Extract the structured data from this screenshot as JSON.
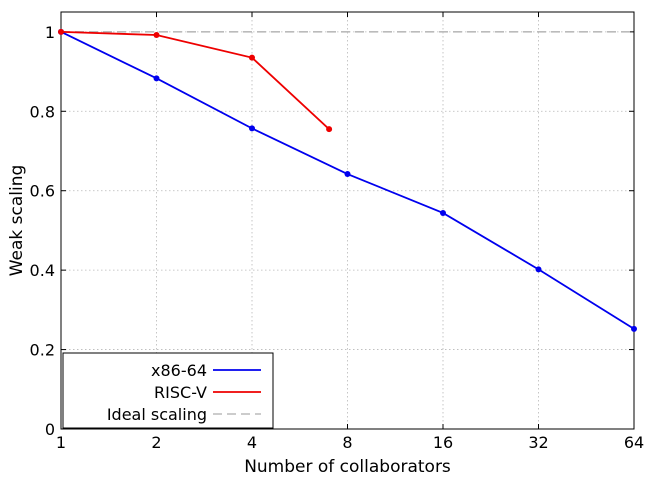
{
  "chart_data": {
    "type": "line",
    "title": "",
    "xlabel": "Number of collaborators",
    "ylabel": "Weak scaling",
    "x_scale": "log2",
    "xlim": [
      1,
      64
    ],
    "ylim": [
      0,
      1.05
    ],
    "xticks": [
      1,
      2,
      4,
      8,
      16,
      32,
      64
    ],
    "xtick_labels": [
      "1",
      "2",
      "4",
      "8",
      "16",
      "32",
      "64"
    ],
    "yticks": [
      0,
      0.2,
      0.4,
      0.6,
      0.8,
      1
    ],
    "ytick_labels": [
      "0",
      "0.2",
      "0.4",
      "0.6",
      "0.8",
      "1"
    ],
    "grid": true,
    "legend_position": "bottom-left",
    "series": [
      {
        "name": "x86-64",
        "color": "#0000ee",
        "style": "solid-markers",
        "x": [
          1,
          2,
          4,
          8,
          16,
          32,
          64
        ],
        "y": [
          1.0,
          0.883,
          0.757,
          0.642,
          0.544,
          0.402,
          0.252
        ]
      },
      {
        "name": "RISC-V",
        "color": "#ee0000",
        "style": "solid-markers",
        "x": [
          1,
          2,
          4,
          7
        ],
        "y": [
          1.0,
          0.992,
          0.935,
          0.755
        ]
      },
      {
        "name": "Ideal scaling",
        "color": "#bbbbbb",
        "style": "dashed",
        "x": [
          1,
          64
        ],
        "y": [
          1.0,
          1.0
        ]
      }
    ]
  }
}
